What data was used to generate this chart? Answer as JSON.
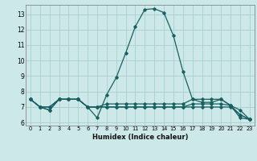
{
  "xlabel": "Humidex (Indice chaleur)",
  "bg_color": "#cce8e8",
  "grid_color": "#aacece",
  "line_color": "#1a6060",
  "xlim": [
    -0.5,
    23.5
  ],
  "ylim": [
    5.8,
    13.6
  ],
  "yticks": [
    6,
    7,
    8,
    9,
    10,
    11,
    12,
    13
  ],
  "xticks": [
    0,
    1,
    2,
    3,
    4,
    5,
    6,
    7,
    8,
    9,
    10,
    11,
    12,
    13,
    14,
    15,
    16,
    17,
    18,
    19,
    20,
    21,
    22,
    23
  ],
  "series": [
    {
      "x": [
        0,
        1,
        2,
        3,
        4,
        5,
        6,
        7,
        8,
        9,
        10,
        11,
        12,
        13,
        14,
        15,
        16,
        17,
        18,
        19,
        20,
        21,
        22,
        23
      ],
      "y": [
        7.5,
        7.0,
        7.0,
        7.5,
        7.5,
        7.5,
        7.0,
        6.3,
        7.8,
        8.9,
        10.5,
        12.2,
        13.3,
        13.35,
        13.1,
        11.6,
        9.3,
        7.5,
        7.3,
        7.3,
        7.5,
        7.1,
        6.3,
        6.2
      ]
    },
    {
      "x": [
        0,
        1,
        2,
        3,
        4,
        5,
        6,
        7,
        8,
        9,
        10,
        11,
        12,
        13,
        14,
        15,
        16,
        17,
        18,
        19,
        20,
        21,
        22,
        23
      ],
      "y": [
        7.5,
        7.0,
        7.0,
        7.5,
        7.5,
        7.5,
        7.0,
        7.0,
        7.2,
        7.2,
        7.2,
        7.2,
        7.2,
        7.2,
        7.2,
        7.2,
        7.2,
        7.5,
        7.5,
        7.5,
        7.5,
        7.1,
        6.8,
        6.2
      ]
    },
    {
      "x": [
        0,
        1,
        2,
        3,
        4,
        5,
        6,
        7,
        8,
        9,
        10,
        11,
        12,
        13,
        14,
        15,
        16,
        17,
        18,
        19,
        20,
        21,
        22,
        23
      ],
      "y": [
        7.5,
        7.0,
        6.8,
        7.5,
        7.5,
        7.5,
        7.0,
        7.0,
        7.0,
        7.0,
        7.0,
        7.0,
        7.0,
        7.0,
        7.0,
        7.0,
        7.0,
        7.2,
        7.2,
        7.2,
        7.2,
        7.1,
        6.5,
        6.2
      ]
    },
    {
      "x": [
        0,
        1,
        2,
        3,
        4,
        5,
        6,
        7,
        8,
        9,
        10,
        11,
        12,
        13,
        14,
        15,
        16,
        17,
        18,
        19,
        20,
        21,
        22,
        23
      ],
      "y": [
        7.5,
        7.0,
        6.8,
        7.5,
        7.5,
        7.5,
        7.0,
        7.0,
        7.0,
        7.0,
        7.0,
        7.0,
        7.0,
        7.0,
        7.0,
        7.0,
        7.0,
        7.0,
        7.0,
        7.0,
        7.0,
        7.0,
        6.5,
        6.2
      ]
    }
  ]
}
